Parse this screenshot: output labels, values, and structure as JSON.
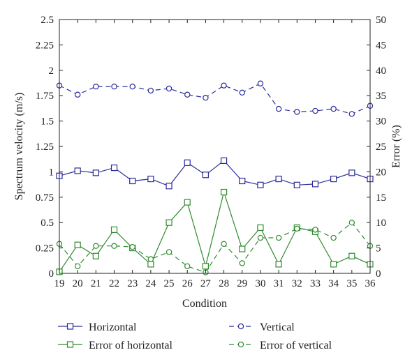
{
  "chart_data": {
    "type": "line",
    "xlabel": "Condition",
    "ylabel_left": "Spectrum velocity (m/s)",
    "ylabel_right": "Error (%)",
    "x": [
      19,
      20,
      21,
      22,
      23,
      24,
      25,
      26,
      27,
      28,
      29,
      30,
      31,
      32,
      33,
      34,
      35,
      36
    ],
    "xlim": [
      19,
      36
    ],
    "ylim_left": [
      0,
      2.5
    ],
    "ylim_right": [
      0,
      50
    ],
    "yticks_left": [
      "0",
      "0.25",
      "0.5",
      "0.75",
      "1",
      "1.25",
      "1.5",
      "1.75",
      "2",
      "2.25",
      "2.5"
    ],
    "yticks_right": [
      "0",
      "5",
      "10",
      "15",
      "20",
      "25",
      "30",
      "35",
      "40",
      "45",
      "50"
    ],
    "legend_position": "bottom",
    "series": [
      {
        "name": "Horizontal",
        "axis": "left",
        "color": "#2a2a9c",
        "line": "solid",
        "marker": "square",
        "values": [
          0.96,
          1.01,
          0.99,
          1.04,
          0.91,
          0.93,
          0.86,
          1.09,
          0.97,
          1.11,
          0.91,
          0.87,
          0.93,
          0.87,
          0.88,
          0.93,
          0.99,
          0.93
        ]
      },
      {
        "name": "Vertical",
        "axis": "left",
        "color": "#2a2a9c",
        "line": "dashed",
        "marker": "circle",
        "values": [
          1.85,
          1.76,
          1.84,
          1.84,
          1.84,
          1.8,
          1.82,
          1.76,
          1.73,
          1.85,
          1.78,
          1.87,
          1.62,
          1.59,
          1.6,
          1.62,
          1.57,
          1.65
        ]
      },
      {
        "name": "Error of horizontal",
        "axis": "right",
        "color": "#2e8b2e",
        "line": "solid",
        "marker": "square",
        "values": [
          0.3,
          5.6,
          3.4,
          8.6,
          5.0,
          1.8,
          10.0,
          14.0,
          1.4,
          16.0,
          4.8,
          9.0,
          1.8,
          9.0,
          8.2,
          1.8,
          3.4,
          1.8
        ]
      },
      {
        "name": "Error of vertical",
        "axis": "right",
        "color": "#2e8b2e",
        "line": "dashed",
        "marker": "circle",
        "values": [
          5.8,
          1.4,
          5.4,
          5.4,
          5.2,
          2.8,
          4.2,
          1.4,
          0.2,
          5.8,
          2.0,
          7.0,
          7.0,
          8.8,
          8.6,
          7.0,
          10.0,
          5.4
        ]
      }
    ]
  }
}
